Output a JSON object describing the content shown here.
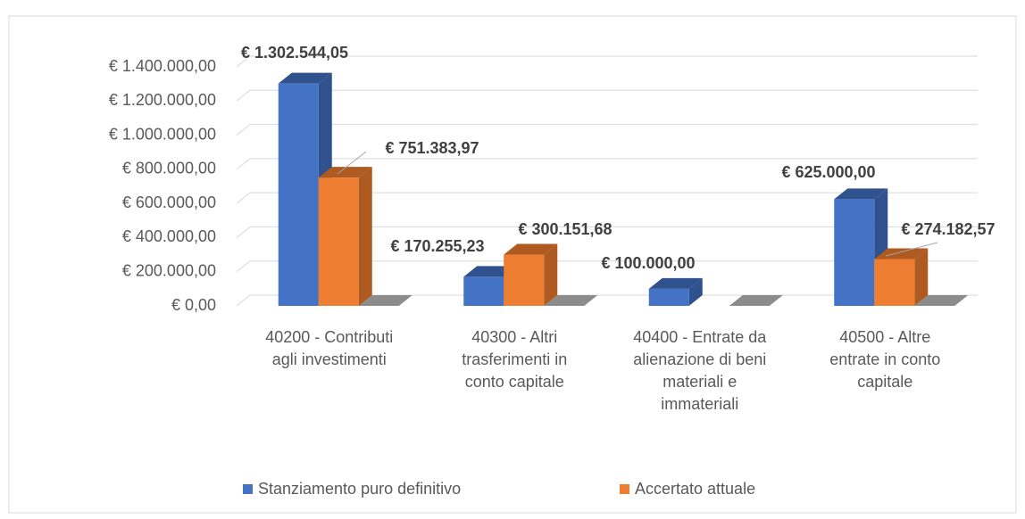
{
  "chart_data": {
    "type": "bar3d",
    "categories": [
      "40200 - Contributi agli investimenti",
      "40300 - Altri trasferimenti in conto capitale",
      "40400 - Entrate da alienazione di beni materiali e immateriali",
      "40500 - Altre entrate in conto capitale"
    ],
    "series": [
      {
        "name": "Stanziamento puro definitivo",
        "color": "#4472c4",
        "values": [
          1302544.05,
          170255.23,
          100000,
          625000
        ],
        "value_labels": [
          "€ 1.302.544,05",
          "€ 170.255,23",
          "€ 100.000,00",
          "€ 625.000,00"
        ]
      },
      {
        "name": "Accertato attuale",
        "color": "#ed7d31",
        "values": [
          751383.97,
          300151.68,
          null,
          274182.57
        ],
        "value_labels": [
          "€ 751.383,97",
          "€ 300.151,68",
          null,
          "€ 274.182,57"
        ]
      }
    ],
    "ylim": [
      0,
      1400000
    ],
    "yticks": [
      {
        "value": 0,
        "label": "€ 0,00"
      },
      {
        "value": 200000,
        "label": "€ 200.000,00"
      },
      {
        "value": 400000,
        "label": "€ 400.000,00"
      },
      {
        "value": 600000,
        "label": "€ 600.000,00"
      },
      {
        "value": 800000,
        "label": "€ 800.000,00"
      },
      {
        "value": 1000000,
        "label": "€ 1.000.000,00"
      },
      {
        "value": 1200000,
        "label": "€ 1.200.000,00"
      },
      {
        "value": 1400000,
        "label": "€ 1.400.000,00"
      }
    ],
    "grid": true,
    "legend": "bottom"
  }
}
